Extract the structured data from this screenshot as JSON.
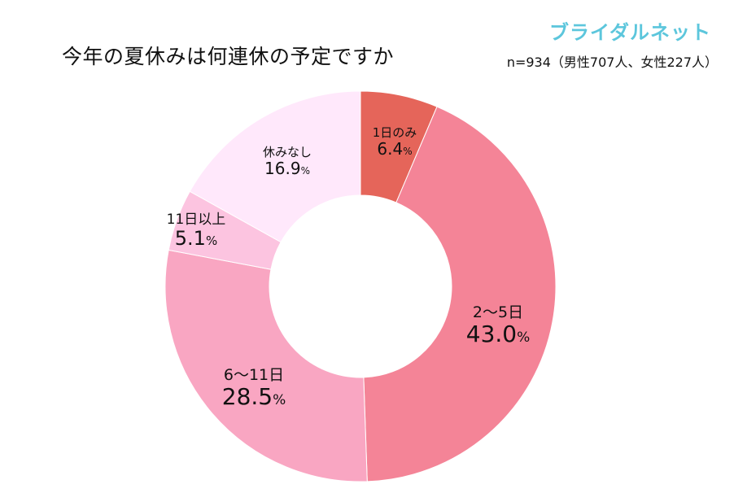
{
  "header": {
    "title": "今年の夏休みは何連休の予定ですか",
    "brand": "ブライダルネット",
    "sample": "n=934（男性707人、女性227人）"
  },
  "chart_data": {
    "type": "pie",
    "donut": true,
    "title": "今年の夏休みは何連休の予定ですか",
    "categories": [
      "1日のみ",
      "2～5日",
      "6～11日",
      "11日以上",
      "休みなし"
    ],
    "values": [
      6.4,
      43.0,
      28.5,
      5.1,
      16.9
    ],
    "value_labels": [
      "6.4",
      "43.0",
      "28.5",
      "5.1",
      "16.9"
    ],
    "unit": "%",
    "colors": [
      "#e5655a",
      "#f48497",
      "#f9a6c2",
      "#fcc4e0",
      "#ffe8fb"
    ]
  }
}
